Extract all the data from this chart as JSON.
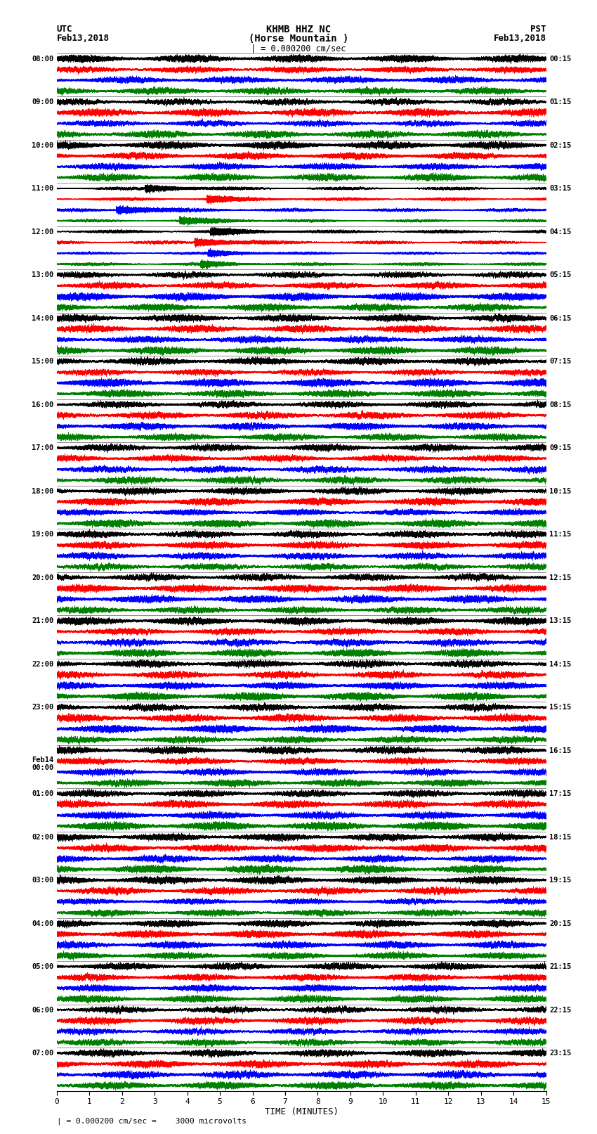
{
  "title_line1": "KHMB HHZ NC",
  "title_line2": "(Horse Mountain )",
  "title_line3": "| = 0.000200 cm/sec",
  "utc_label": "UTC",
  "utc_date": "Feb13,2018",
  "pst_label": "PST",
  "pst_date": "Feb13,2018",
  "xlabel": "TIME (MINUTES)",
  "footer_prefix": "| = 0.000200 cm/sec =    3000 microvolts",
  "trace_colors": [
    "black",
    "red",
    "blue",
    "green"
  ],
  "background_color": "white",
  "left_times": [
    "08:00",
    "09:00",
    "10:00",
    "11:00",
    "12:00",
    "13:00",
    "14:00",
    "15:00",
    "16:00",
    "17:00",
    "18:00",
    "19:00",
    "20:00",
    "21:00",
    "22:00",
    "23:00",
    "Feb14\n00:00",
    "01:00",
    "02:00",
    "03:00",
    "04:00",
    "05:00",
    "06:00",
    "07:00"
  ],
  "right_times": [
    "00:15",
    "01:15",
    "02:15",
    "03:15",
    "04:15",
    "05:15",
    "06:15",
    "07:15",
    "08:15",
    "09:15",
    "10:15",
    "11:15",
    "12:15",
    "13:15",
    "14:15",
    "15:15",
    "16:15",
    "17:15",
    "18:15",
    "19:15",
    "20:15",
    "21:15",
    "22:15",
    "23:15"
  ],
  "n_rows": 24,
  "traces_per_row": 4,
  "duration_minutes": 15,
  "sample_rate": 100,
  "big_event_rows": [
    3,
    4
  ],
  "big_event_colors": [
    0,
    0,
    1,
    1
  ],
  "noise_amplitudes": [
    0.35,
    0.42,
    0.38,
    0.3
  ]
}
